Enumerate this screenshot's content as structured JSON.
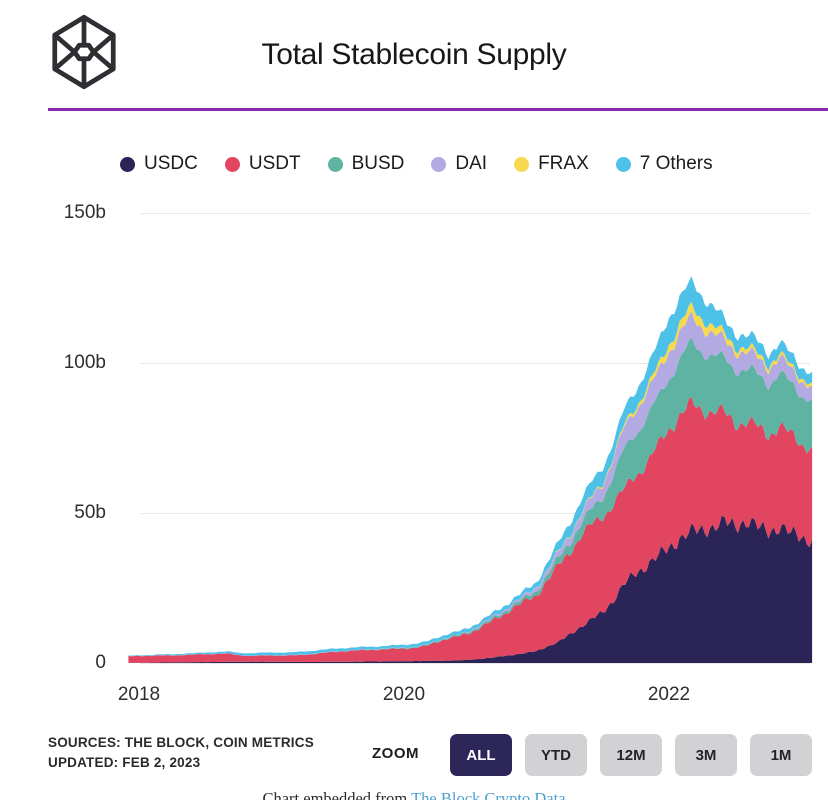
{
  "header": {
    "title": "Total Stablecoin Supply",
    "divider_color": "#8e28b2",
    "logo_color": "#2f2f33"
  },
  "chart_data": {
    "type": "area",
    "stacked": true,
    "title": "Total Stablecoin Supply",
    "unit": "billions USD",
    "xlabel": "",
    "ylabel": "",
    "ylim": [
      0,
      150
    ],
    "xlim": [
      2017.92,
      2023.08
    ],
    "grid": "horizontal",
    "legend_position": "top",
    "yticks": [
      {
        "value": 150,
        "label": "150b"
      },
      {
        "value": 100,
        "label": "100b"
      },
      {
        "value": 50,
        "label": "50b"
      },
      {
        "value": 0,
        "label": "0"
      }
    ],
    "xticks": [
      {
        "value": 2018,
        "label": "2018"
      },
      {
        "value": 2020,
        "label": "2020"
      },
      {
        "value": 2022,
        "label": "2022"
      }
    ],
    "x": [
      2017.92,
      2018.0,
      2018.08,
      2018.17,
      2018.25,
      2018.33,
      2018.42,
      2018.5,
      2018.58,
      2018.67,
      2018.75,
      2018.83,
      2018.92,
      2019.0,
      2019.08,
      2019.17,
      2019.25,
      2019.33,
      2019.42,
      2019.5,
      2019.58,
      2019.67,
      2019.75,
      2019.83,
      2019.92,
      2020.0,
      2020.08,
      2020.17,
      2020.25,
      2020.33,
      2020.42,
      2020.5,
      2020.58,
      2020.67,
      2020.75,
      2020.83,
      2020.92,
      2021.0,
      2021.08,
      2021.17,
      2021.25,
      2021.33,
      2021.42,
      2021.5,
      2021.58,
      2021.67,
      2021.75,
      2021.83,
      2021.92,
      2022.0,
      2022.08,
      2022.17,
      2022.25,
      2022.33,
      2022.42,
      2022.5,
      2022.58,
      2022.67,
      2022.75,
      2022.83,
      2022.92,
      2023.0,
      2023.08
    ],
    "series": [
      {
        "name": "USDC",
        "color": "#2a2457",
        "values": [
          0.05,
          0.1,
          0.12,
          0.15,
          0.2,
          0.25,
          0.3,
          0.3,
          0.35,
          0.4,
          0.4,
          0.45,
          0.45,
          0.4,
          0.4,
          0.35,
          0.35,
          0.35,
          0.4,
          0.4,
          0.45,
          0.45,
          0.5,
          0.5,
          0.55,
          0.6,
          0.65,
          0.7,
          0.75,
          0.8,
          0.9,
          1.1,
          1.4,
          1.8,
          2.3,
          2.8,
          3.3,
          4.0,
          5.5,
          7.0,
          9.5,
          12.0,
          14.5,
          17.0,
          21.0,
          26.5,
          30.0,
          32.5,
          35.5,
          38.5,
          41.5,
          43.5,
          44.5,
          45.5,
          46.5,
          46.0,
          47.5,
          45.0,
          44.0,
          45.5,
          43.0,
          42.0,
          41.0
        ]
      },
      {
        "name": "USDT",
        "color": "#e2455f",
        "values": [
          2.2,
          2.25,
          2.3,
          2.35,
          2.3,
          2.4,
          2.5,
          2.6,
          2.7,
          2.75,
          2.2,
          1.9,
          2.0,
          2.1,
          2.1,
          2.2,
          2.4,
          2.7,
          3.1,
          3.4,
          3.6,
          3.8,
          3.9,
          4.0,
          4.1,
          4.2,
          4.4,
          5.0,
          6.3,
          7.3,
          8.0,
          9.0,
          10.5,
          12.3,
          13.8,
          15.8,
          17.3,
          18.5,
          22.0,
          25.5,
          27.5,
          30.0,
          31.5,
          32.0,
          32.0,
          31.5,
          33.0,
          34.0,
          36.5,
          40.0,
          41.0,
          42.0,
          40.5,
          38.5,
          36.0,
          34.5,
          33.0,
          33.0,
          32.5,
          33.5,
          32.5,
          31.5,
          31.0
        ]
      },
      {
        "name": "BUSD",
        "color": "#5fb3a3",
        "values": [
          0,
          0,
          0,
          0,
          0,
          0,
          0,
          0,
          0,
          0,
          0,
          0,
          0,
          0,
          0,
          0,
          0,
          0,
          0,
          0,
          0,
          0.05,
          0.1,
          0.15,
          0.2,
          0.25,
          0.3,
          0.3,
          0.35,
          0.4,
          0.45,
          0.5,
          0.6,
          0.7,
          0.8,
          0.9,
          1.1,
          1.5,
          1.8,
          2.5,
          3.2,
          4.0,
          5.2,
          6.5,
          9.5,
          13.5,
          14.0,
          15.0,
          16.0,
          17.0,
          18.5,
          20.5,
          19.5,
          18.5,
          18.0,
          18.0,
          17.5,
          17.5,
          17.0,
          17.5,
          17.0,
          16.5,
          16.0
        ]
      },
      {
        "name": "DAI",
        "color": "#b3a9e3",
        "values": [
          0.02,
          0.03,
          0.04,
          0.05,
          0.05,
          0.06,
          0.06,
          0.07,
          0.07,
          0.08,
          0.08,
          0.09,
          0.1,
          0.1,
          0.1,
          0.1,
          0.1,
          0.1,
          0.1,
          0.1,
          0.1,
          0.1,
          0.1,
          0.1,
          0.1,
          0.12,
          0.12,
          0.1,
          0.1,
          0.12,
          0.15,
          0.2,
          0.35,
          0.45,
          0.6,
          0.7,
          0.9,
          1.2,
          1.5,
          2.0,
          2.5,
          3.0,
          3.8,
          4.5,
          5.5,
          7.5,
          7.8,
          8.3,
          8.6,
          8.8,
          8.8,
          8.5,
          8.0,
          7.3,
          6.3,
          6.0,
          5.8,
          5.6,
          5.3,
          5.2,
          5.0,
          4.8,
          4.6
        ]
      },
      {
        "name": "FRAX",
        "color": "#f6d94e",
        "values": [
          0,
          0,
          0,
          0,
          0,
          0,
          0,
          0,
          0,
          0,
          0,
          0,
          0,
          0,
          0,
          0,
          0,
          0,
          0,
          0,
          0,
          0,
          0,
          0,
          0,
          0,
          0,
          0,
          0,
          0,
          0,
          0,
          0,
          0,
          0,
          0,
          0.05,
          0.1,
          0.15,
          0.2,
          0.25,
          0.3,
          0.4,
          0.5,
          0.6,
          0.9,
          1.1,
          1.5,
          2.0,
          2.5,
          3.0,
          3.4,
          3.0,
          2.6,
          2.0,
          1.6,
          1.5,
          1.4,
          1.3,
          1.2,
          1.1,
          1.05,
          1.0
        ]
      },
      {
        "name": "7 Others",
        "color": "#4ec1e8",
        "values": [
          0.15,
          0.2,
          0.25,
          0.3,
          0.35,
          0.4,
          0.45,
          0.5,
          0.55,
          0.6,
          0.7,
          0.8,
          0.85,
          0.9,
          0.9,
          0.95,
          1.0,
          1.0,
          1.0,
          0.95,
          0.9,
          0.9,
          0.85,
          0.85,
          0.9,
          0.9,
          0.95,
          1.0,
          1.0,
          1.05,
          1.1,
          1.15,
          1.2,
          1.25,
          1.3,
          1.35,
          1.5,
          1.7,
          2.4,
          3.0,
          3.8,
          4.5,
          4.8,
          5.0,
          5.0,
          5.0,
          5.5,
          6.5,
          7.5,
          9.0,
          9.0,
          8.3,
          7.5,
          6.8,
          4.5,
          4.5,
          4.2,
          4.0,
          3.8,
          3.8,
          3.7,
          3.6,
          3.5
        ]
      }
    ]
  },
  "footer": {
    "sources_line1": "SOURCES: THE BLOCK, COIN METRICS",
    "sources_line2": "UPDATED: FEB 2, 2023",
    "zoom_label": "ZOOM",
    "zoom_buttons": [
      {
        "label": "ALL",
        "active": true
      },
      {
        "label": "YTD",
        "active": false
      },
      {
        "label": "12M",
        "active": false
      },
      {
        "label": "3M",
        "active": false
      },
      {
        "label": "1M",
        "active": false
      }
    ],
    "active_button_color": "#2c2659",
    "inactive_button_color": "#d2d2d5"
  },
  "caption": {
    "prefix": "Chart embedded from ",
    "link_text": "The Block Crypto Data",
    "link_color": "#4a9fd4"
  }
}
